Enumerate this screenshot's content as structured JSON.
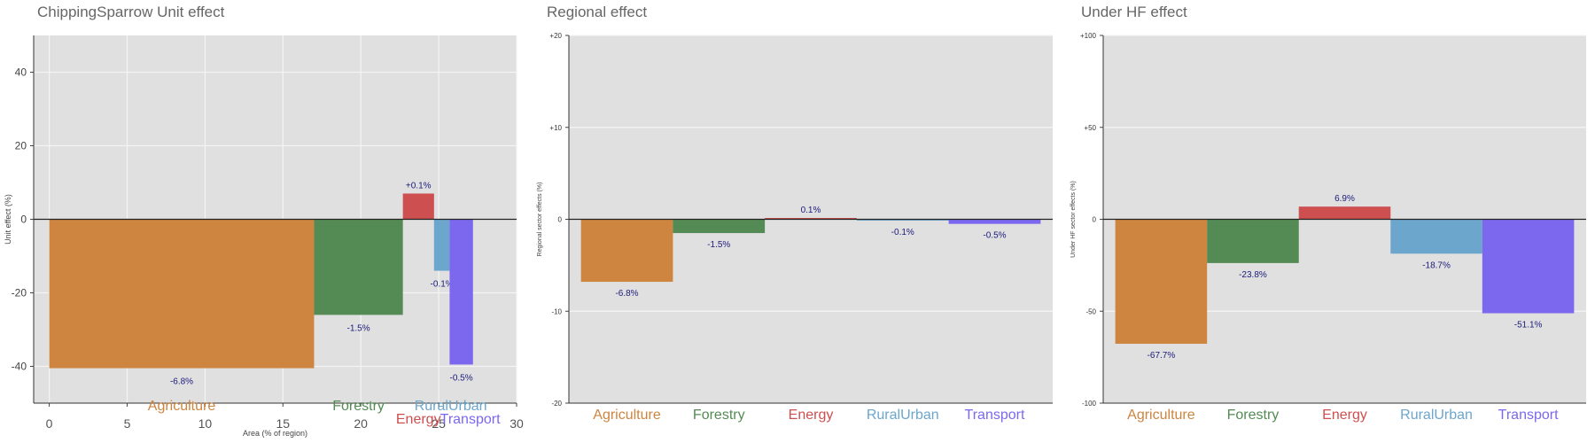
{
  "chart_data": [
    {
      "type": "bar",
      "title": "ChippingSparrow Unit effect",
      "xlabel": "Area (% of region)",
      "ylabel": "Unit effect (%)",
      "xlim": [
        -1,
        30
      ],
      "ylim": [
        -50,
        50
      ],
      "xticks": [
        "0",
        "5",
        "10",
        "15",
        "20",
        "25",
        "30"
      ],
      "yticks": [
        "40",
        "20",
        "0",
        "-20",
        "-40"
      ],
      "grid": true,
      "categories": [
        "Agriculture",
        "Forestry",
        "Energy",
        "RuralUrban",
        "Transport"
      ],
      "area": [
        17.0,
        5.7,
        2.0,
        1.0,
        1.5
      ],
      "x_start": [
        0.0,
        17.0,
        22.7,
        24.7,
        25.7
      ],
      "values": [
        -40.5,
        -26.0,
        7.0,
        -14.0,
        -39.5
      ],
      "labels": [
        "-6.8%",
        "-1.5%",
        "+0.1%",
        "-0.1%",
        "-0.5%"
      ],
      "colors": [
        "#cd853f",
        "#548b54",
        "#cd4f4f",
        "#6ca6cd",
        "#7b68ee"
      ]
    },
    {
      "type": "bar",
      "title": "Regional effect",
      "xlabel": "",
      "ylabel": "Regional sector effects (%)",
      "ylim": [
        -20,
        20
      ],
      "yticks": [
        "+20",
        "+10",
        "0",
        "-10",
        "-20"
      ],
      "grid": true,
      "categories": [
        "Agriculture",
        "Forestry",
        "Energy",
        "RuralUrban",
        "Transport"
      ],
      "values": [
        -6.8,
        -1.5,
        0.1,
        -0.1,
        -0.5
      ],
      "labels": [
        "-6.8%",
        "-1.5%",
        "0.1%",
        "-0.1%",
        "-0.5%"
      ],
      "colors": [
        "#cd853f",
        "#548b54",
        "#cd4f4f",
        "#6ca6cd",
        "#7b68ee"
      ]
    },
    {
      "type": "bar",
      "title": "Under HF effect",
      "xlabel": "",
      "ylabel": "Under HF sector effects (%)",
      "ylim": [
        -100,
        100
      ],
      "yticks": [
        "+100",
        "+50",
        "0",
        "-50",
        "-100"
      ],
      "grid": true,
      "categories": [
        "Agriculture",
        "Forestry",
        "Energy",
        "RuralUrban",
        "Transport"
      ],
      "values": [
        -67.7,
        -23.8,
        6.9,
        -18.7,
        -51.1
      ],
      "labels": [
        "-67.7%",
        "-23.8%",
        "6.9%",
        "-18.7%",
        "-51.1%"
      ],
      "colors": [
        "#cd853f",
        "#548b54",
        "#cd4f4f",
        "#6ca6cd",
        "#7b68ee"
      ]
    }
  ]
}
